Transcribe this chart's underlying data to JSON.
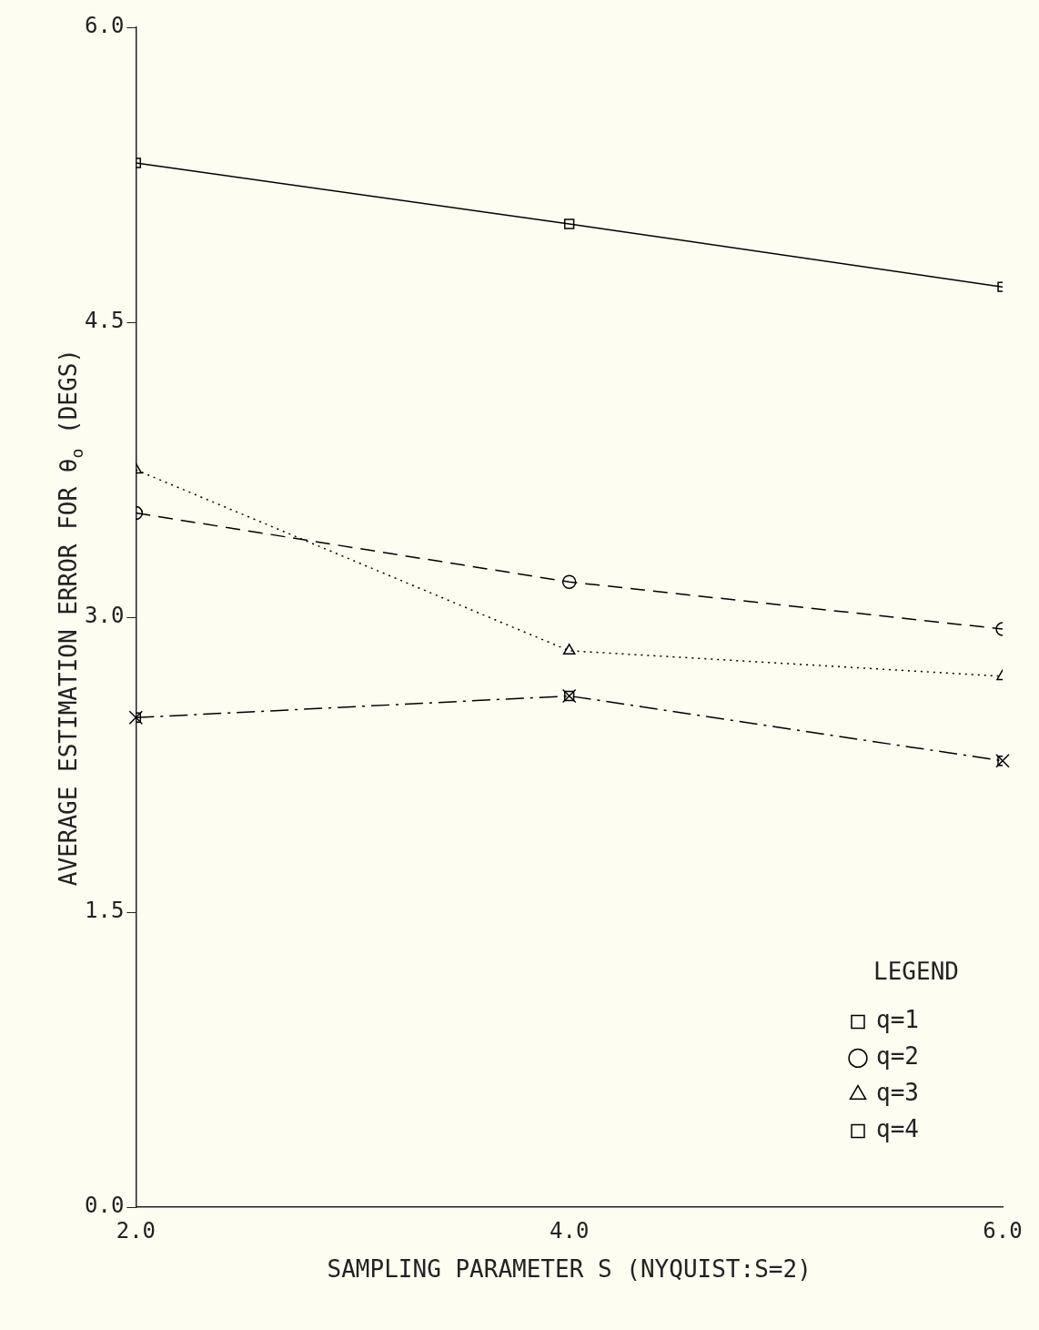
{
  "chart_data": {
    "type": "line",
    "xlabel": "SAMPLING PARAMETER S (NYQUIST:S=2)",
    "ylabel": "AVERAGE ESTIMATION ERROR FOR θ$_{o}$ (DEGS)",
    "legend_title": "LEGEND",
    "legend": "bottom right",
    "grid": false,
    "x": [
      2,
      4,
      6
    ],
    "xlim": [
      2,
      6
    ],
    "xticks": [
      {
        "value": 2,
        "label": "2.0"
      },
      {
        "value": 4,
        "label": "4.0"
      },
      {
        "value": 6,
        "label": "6.0"
      }
    ],
    "ylim": [
      0,
      6
    ],
    "yticks": [
      {
        "value": 0,
        "label": "0.0"
      },
      {
        "value": 1.5,
        "label": "1.5"
      },
      {
        "value": 3,
        "label": "3.0"
      },
      {
        "value": 4.5,
        "label": "4.5"
      },
      {
        "value": 6,
        "label": "6.0"
      }
    ],
    "series": [
      {
        "name": "q=1",
        "color": "#000000",
        "marker": "square",
        "line_style": "solid",
        "values": [
          5.31,
          5.0,
          4.68
        ]
      },
      {
        "name": "q=2",
        "color": "#000000",
        "marker": "circle",
        "line_style": "dashed",
        "values": [
          3.53,
          3.18,
          2.94
        ]
      },
      {
        "name": "q=3",
        "color": "#000000",
        "marker": "triangle",
        "line_style": "dotted",
        "values": [
          3.75,
          2.83,
          2.7
        ]
      },
      {
        "name": "q=4",
        "color": "#000000",
        "marker": "cross",
        "line_style": "dashdot",
        "values": [
          2.49,
          2.6,
          2.27
        ]
      }
    ]
  }
}
